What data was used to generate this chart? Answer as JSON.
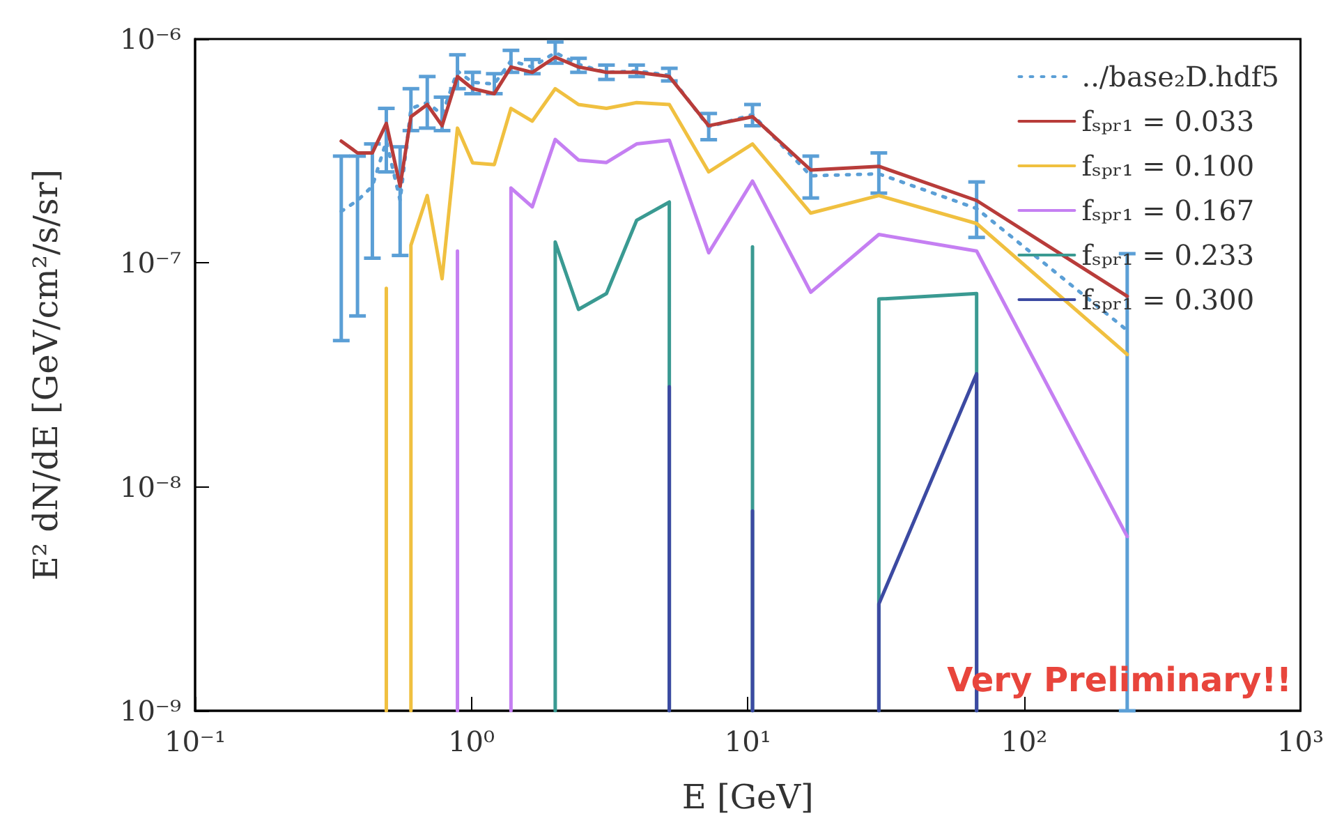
{
  "chart_data": {
    "type": "line",
    "xlabel": "E [GeV]",
    "ylabel": "E² dN/dE [GeV/cm²/s/sr]",
    "log": "xy",
    "legend": "top right",
    "marker": "none",
    "line_style": "solid",
    "xlim": [
      0.1,
      1000
    ],
    "ylim": [
      1e-09,
      1e-06
    ],
    "xticks": [
      {
        "value": 0.1,
        "label": "10⁻¹"
      },
      {
        "value": 1,
        "label": "10⁰"
      },
      {
        "value": 10,
        "label": "10¹"
      },
      {
        "value": 100,
        "label": "10²"
      },
      {
        "value": 1000,
        "label": "10³"
      }
    ],
    "yticks": [
      {
        "value": 1e-09,
        "label": "10⁻⁹"
      },
      {
        "value": 1e-08,
        "label": "10⁻⁸"
      },
      {
        "value": 1e-07,
        "label": "10⁻⁷"
      },
      {
        "value": 1e-06,
        "label": "10⁻⁶"
      }
    ],
    "x": [
      0.338,
      0.387,
      0.438,
      0.492,
      0.552,
      0.604,
      0.692,
      0.783,
      0.89,
      1.01,
      1.21,
      1.39,
      1.66,
      2.01,
      2.44,
      3.08,
      3.96,
      5.2,
      7.22,
      10.4,
      16.9,
      29.8,
      67.3,
      236
    ],
    "series": [
      {
        "name": "../base₂D.hdf5",
        "color": "#5b9fd6",
        "line_style": "dotted",
        "values": [
          1.7e-07,
          1.9e-07,
          2.2e-07,
          3.5e-07,
          1.9e-07,
          4.9e-07,
          5.2e-07,
          4.6e-07,
          7.2e-07,
          6.4e-07,
          6.3e-07,
          8e-07,
          7.5e-07,
          8.7e-07,
          7.7e-07,
          7.1e-07,
          7.2e-07,
          6.9e-07,
          4.05e-07,
          4.6e-07,
          2.45e-07,
          2.5e-07,
          1.75e-07,
          5e-08
        ],
        "errors": [
          [
            4.5e-08,
            3e-07
          ],
          [
            5.8e-08,
            3e-07
          ],
          [
            1.05e-07,
            3.4e-07
          ],
          [
            2.55e-07,
            4.9e-07
          ],
          [
            1.08e-07,
            3.3e-07
          ],
          [
            3.9e-07,
            6e-07
          ],
          [
            4e-07,
            6.8e-07
          ],
          [
            3.9e-07,
            5.5e-07
          ],
          [
            6e-07,
            8.5e-07
          ],
          [
            5.7e-07,
            7.1e-07
          ],
          [
            5.7e-07,
            7e-07
          ],
          [
            7.1e-07,
            8.9e-07
          ],
          [
            7e-07,
            8.1e-07
          ],
          [
            7.8e-07,
            9.7e-07
          ],
          [
            7.1e-07,
            8.2e-07
          ],
          [
            6.6e-07,
            7.65e-07
          ],
          [
            6.8e-07,
            7.65e-07
          ],
          [
            6.5e-07,
            7.4e-07
          ],
          [
            3.55e-07,
            4.65e-07
          ],
          [
            4.1e-07,
            5.1e-07
          ],
          [
            1.95e-07,
            3e-07
          ],
          [
            2.05e-07,
            3.1e-07
          ],
          [
            1.3e-07,
            2.3e-07
          ],
          [
            1e-09,
            1.1e-07
          ]
        ]
      },
      {
        "name": "fₛₚᵣ₁ = 0.033",
        "color": "#b83c3a",
        "values": [
          3.5e-07,
          3.1e-07,
          3.1e-07,
          4.2e-07,
          2.2e-07,
          4.5e-07,
          5.1e-07,
          4.1e-07,
          6.8e-07,
          6e-07,
          5.7e-07,
          7.5e-07,
          7.1e-07,
          8.3e-07,
          7.5e-07,
          7.1e-07,
          7.1e-07,
          6.8e-07,
          4.1e-07,
          4.5e-07,
          2.6e-07,
          2.7e-07,
          1.9e-07,
          7.1e-08
        ]
      },
      {
        "name": "fₛₚᵣ₁ = 0.100",
        "color": "#f0c040",
        "x": [
          0.492,
          0.492,
          0.552,
          0.604,
          0.604,
          0.692,
          0.783,
          0.89,
          1.01,
          1.21,
          1.39,
          1.66,
          2.01,
          2.44,
          3.08,
          3.96,
          5.2,
          7.22,
          10.4,
          16.9,
          29.8,
          67.3,
          236
        ],
        "values": [
          1e-09,
          7.7e-08,
          null,
          1e-09,
          1.2e-07,
          2e-07,
          8.5e-08,
          4e-07,
          2.8e-07,
          2.75e-07,
          4.9e-07,
          4.3e-07,
          6e-07,
          5.1e-07,
          4.9e-07,
          5.2e-07,
          5.1e-07,
          2.55e-07,
          3.4e-07,
          1.67e-07,
          2e-07,
          1.5e-07,
          3.9e-08
        ]
      },
      {
        "name": "fₛₚᵣ₁ = 0.167",
        "color": "#c57ff2",
        "x": [
          0.89,
          0.89,
          1.01,
          1.39,
          1.39,
          1.66,
          2.01,
          2.44,
          3.08,
          3.96,
          5.2,
          7.22,
          10.4,
          16.9,
          29.8,
          67.3,
          236
        ],
        "values": [
          1e-09,
          1.13e-07,
          null,
          1e-09,
          2.16e-07,
          1.78e-07,
          3.56e-07,
          2.88e-07,
          2.81e-07,
          3.4e-07,
          3.53e-07,
          1.11e-07,
          2.32e-07,
          7.4e-08,
          1.34e-07,
          1.13e-07,
          6e-09
        ]
      },
      {
        "name": "fₛₚᵣ₁ = 0.233",
        "color": "#3a9a92",
        "x": [
          2.01,
          2.01,
          2.44,
          3.08,
          3.96,
          5.2,
          5.2,
          7.22,
          10.4,
          10.4,
          16.9,
          29.8,
          29.8,
          67.3,
          67.3
        ],
        "values": [
          1e-09,
          1.24e-07,
          6.2e-08,
          7.3e-08,
          1.55e-07,
          1.87e-07,
          1e-09,
          null,
          1e-09,
          1.18e-07,
          null,
          1e-09,
          6.9e-08,
          7.3e-08,
          1e-09
        ]
      },
      {
        "name": "fₛₚᵣ₁ = 0.300",
        "color": "#3c4aa2",
        "x": [
          5.2,
          5.2,
          7.22,
          10.4,
          10.4,
          16.9,
          29.8,
          29.8,
          67.3,
          67.3
        ],
        "values": [
          1e-09,
          2.8e-08,
          null,
          1e-09,
          7.8e-09,
          null,
          1e-09,
          3e-09,
          3.2e-08,
          1e-09
        ]
      }
    ],
    "annotations": [
      "Very Preliminary!!"
    ]
  }
}
